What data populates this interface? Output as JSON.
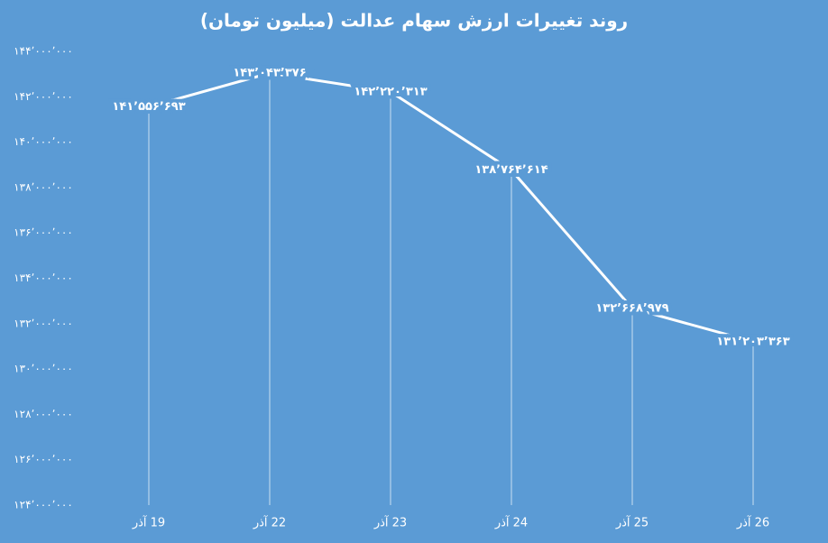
{
  "chart_data": {
    "type": "line",
    "title": "روند تغییرات ارزش سهام عدالت (میلیون تومان)",
    "categories": [
      "19 آذر",
      "22 آذر",
      "23 آذر",
      "24 آذر",
      "25 آذر",
      "26 آذر"
    ],
    "series": [
      {
        "name": "ارزش سهام عدالت",
        "color": "#ffffff",
        "values": [
          141556693,
          143043376,
          142220313,
          138764614,
          132668979,
          131203363
        ],
        "value_labels": [
          "۱۴۱٬۵۵۶٬۶۹۳",
          "۱۴۳٬۰۴۳٬۳۷۶",
          "۱۴۲٬۲۲۰٬۳۱۳",
          "۱۳۸٬۷۶۴٬۶۱۴",
          "۱۳۲٬۶۶۸٬۹۷۹",
          "۱۳۱٬۲۰۳٬۳۶۳"
        ]
      }
    ],
    "ylim": [
      124000000,
      144000000
    ],
    "yticks": [
      {
        "value": 124000000,
        "label": "۱۲۴٬۰۰۰٬۰۰۰"
      },
      {
        "value": 126000000,
        "label": "۱۲۶٬۰۰۰٬۰۰۰"
      },
      {
        "value": 128000000,
        "label": "۱۲۸٬۰۰۰٬۰۰۰"
      },
      {
        "value": 130000000,
        "label": "۱۳۰٬۰۰۰٬۰۰۰"
      },
      {
        "value": 132000000,
        "label": "۱۳۲٬۰۰۰٬۰۰۰"
      },
      {
        "value": 134000000,
        "label": "۱۳۴٬۰۰۰٬۰۰۰"
      },
      {
        "value": 136000000,
        "label": "۱۳۶٬۰۰۰٬۰۰۰"
      },
      {
        "value": 138000000,
        "label": "۱۳۸٬۰۰۰٬۰۰۰"
      },
      {
        "value": 140000000,
        "label": "۱۴۰٬۰۰۰٬۰۰۰"
      },
      {
        "value": 142000000,
        "label": "۱۴۲٬۰۰۰٬۰۰۰"
      },
      {
        "value": 144000000,
        "label": "۱۴۴٬۰۰۰٬۰۰۰"
      }
    ],
    "grid": false
  }
}
